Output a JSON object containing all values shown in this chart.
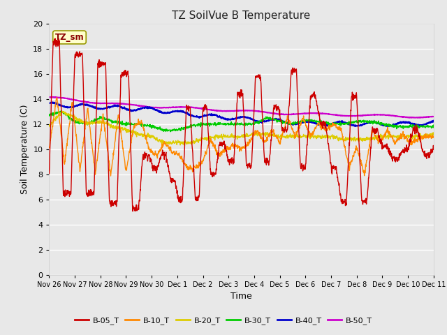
{
  "title": "TZ SoilVue B Temperature",
  "xlabel": "Time",
  "ylabel": "Soil Temperature (C)",
  "ylim": [
    0,
    20
  ],
  "yticks": [
    0,
    2,
    4,
    6,
    8,
    10,
    12,
    14,
    16,
    18,
    20
  ],
  "annotation": "TZ_sm",
  "fig_bg_color": "#e8e8e8",
  "plot_bg_color": "#e8e8e8",
  "grid_color": "#ffffff",
  "series_colors": {
    "B-05_T": "#cc0000",
    "B-10_T": "#ff8800",
    "B-20_T": "#ddcc00",
    "B-30_T": "#00cc00",
    "B-40_T": "#0000cc",
    "B-50_T": "#cc00cc"
  },
  "xtick_labels": [
    "Nov 26",
    "Nov 27",
    "Nov 28",
    "Nov 29",
    "Nov 30",
    "Dec 1",
    "Dec 2",
    "Dec 3",
    "Dec 4",
    "Dec 5",
    "Dec 6",
    "Dec 7",
    "Dec 8",
    "Dec 9",
    "Dec 10",
    "Dec 11"
  ]
}
